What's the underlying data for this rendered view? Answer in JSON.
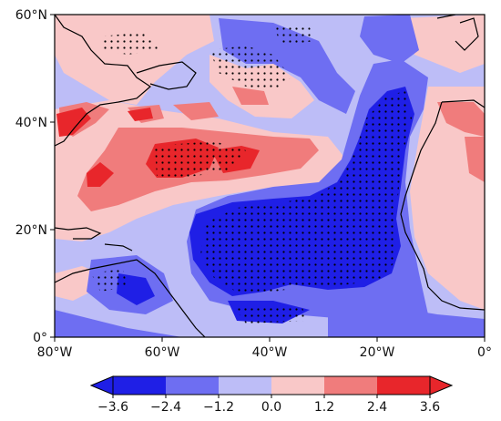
{
  "map": {
    "lat_ticks": [
      "60°N",
      "40°N",
      "20°N",
      "0°"
    ],
    "lon_ticks": [
      "80°W",
      "60°W",
      "40°W",
      "20°W",
      "0°"
    ]
  },
  "colorbar": {
    "tick_labels": [
      "−3.6",
      "−2.4",
      "−1.2",
      "0.0",
      "1.2",
      "2.4",
      "3.6"
    ],
    "bins": [
      {
        "color": "#1f1fe6"
      },
      {
        "color": "#6e6ef2"
      },
      {
        "color": "#bdbdf7"
      },
      {
        "color": "#f9c8c8"
      },
      {
        "color": "#f07c7c"
      },
      {
        "color": "#e8262b"
      }
    ]
  },
  "colors": {
    "strong_negative": "#1f1fe6",
    "negative": "#6e6ef2",
    "weak_negative": "#bdbdf7",
    "weak_positive": "#f9c8c8",
    "positive": "#f07c7c",
    "strong_positive": "#e8262b",
    "coastline": "#000000",
    "stipple": "#000000"
  }
}
